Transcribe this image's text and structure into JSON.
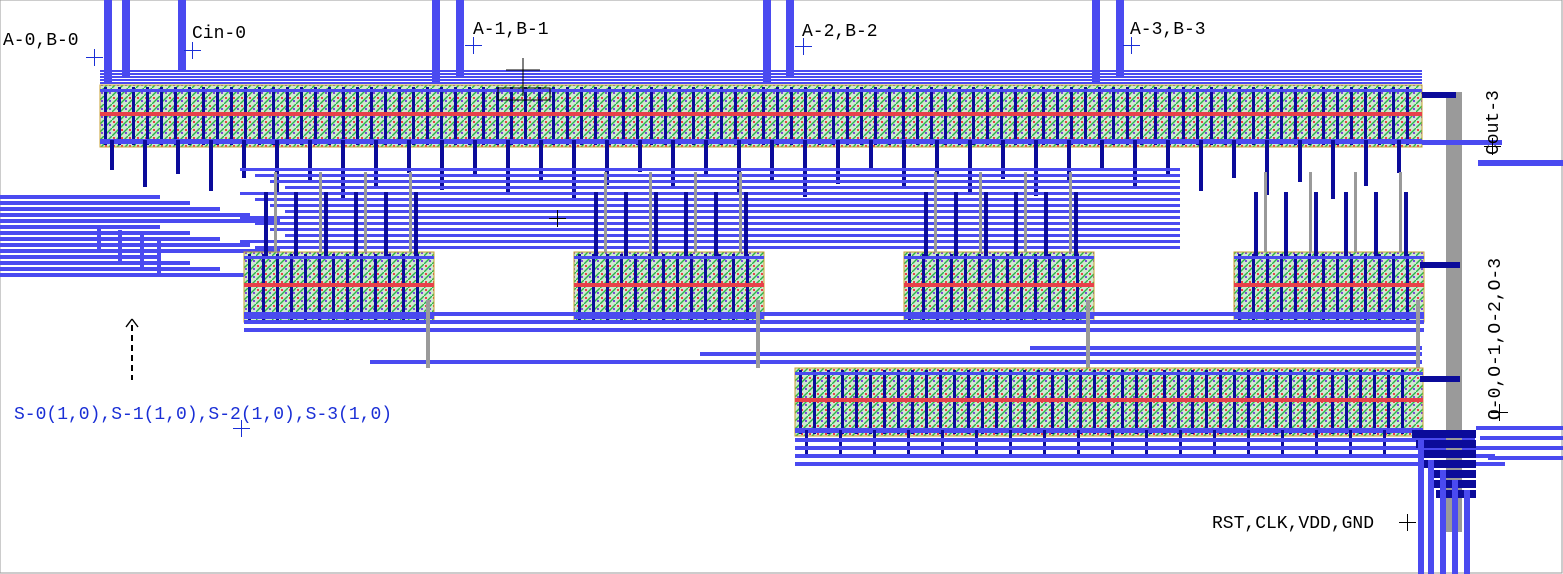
{
  "canvas": {
    "background": "#ffffff",
    "metal_color": "#4a4af0",
    "via_color": "#0b0b9a",
    "poly_color": "#9a9a9a",
    "diff_color": "#2bb34a",
    "implant_color": "#e8404a"
  },
  "pins": {
    "a0b0": "A-0,B-0",
    "cin0": "Cin-0",
    "a1b1": "A-1,B-1",
    "a2b2": "A-2,B-2",
    "a3b3": "A-3,B-3",
    "cout3": "Cout-3",
    "outputs": "O-0,O-1,O-2,O-3",
    "select": "S-0(1,0),S-1(1,0),S-2(1,0),S-3(1,0)",
    "power": "RST,CLK,VDD,GND"
  },
  "icons": [
    "pin-cross-icon",
    "cursor-crosshair-icon",
    "up-arrow-marker-icon"
  ]
}
